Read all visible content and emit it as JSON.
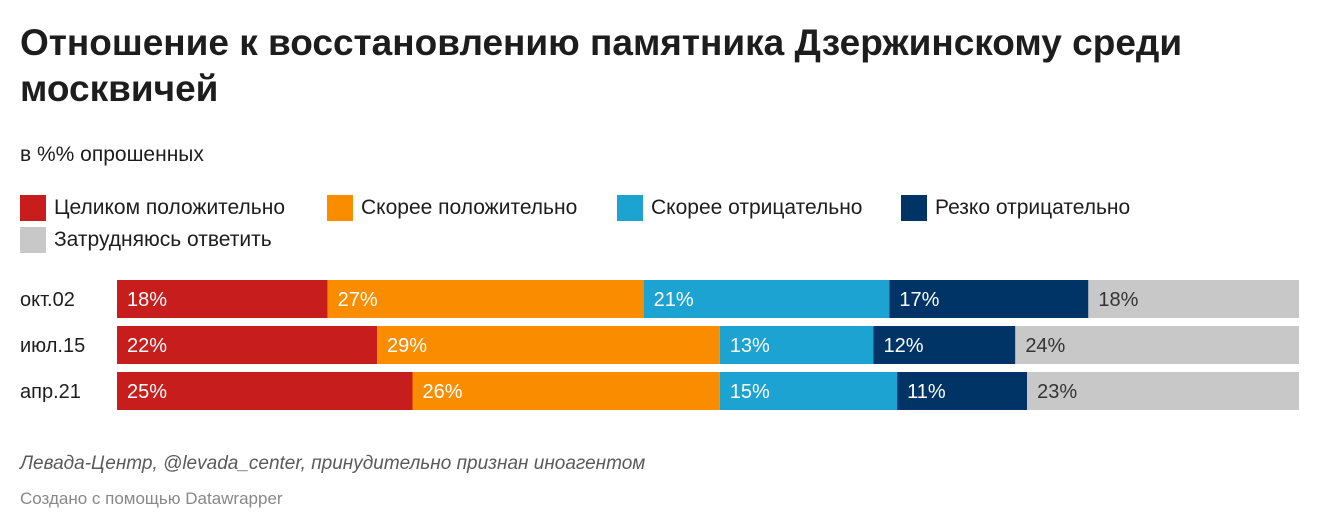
{
  "header": {
    "title": "Отношение к восстановлению памятника Дзержинскому среди москвичей",
    "subtitle": "в %% опрошенных"
  },
  "footer": {
    "source": "Левада-Центр, @levada_center, принудительно признан иноагентом",
    "credit": "Создано с помощью Datawrapper"
  },
  "chart_data": {
    "type": "bar",
    "orientation": "horizontal",
    "stacked": true,
    "value_suffix": "%",
    "categories": [
      "окт.02",
      "июл.15",
      "апр.21"
    ],
    "series": [
      {
        "name": "Целиком положительно",
        "color": "#c71e1d",
        "label_color": "#ffffff",
        "values": [
          18,
          22,
          25
        ]
      },
      {
        "name": "Скорее положительно",
        "color": "#fa8c00",
        "label_color": "#ffffff",
        "values": [
          27,
          29,
          26
        ]
      },
      {
        "name": "Скорее отрицательно",
        "color": "#1da3d1",
        "label_color": "#ffffff",
        "values": [
          21,
          13,
          15
        ]
      },
      {
        "name": "Резко отрицательно",
        "color": "#003366",
        "label_color": "#ffffff",
        "values": [
          17,
          12,
          11
        ]
      },
      {
        "name": "Затрудняюсь ответить",
        "color": "#c8c8c8",
        "label_color": "#333333",
        "values": [
          18,
          24,
          23
        ]
      }
    ]
  }
}
